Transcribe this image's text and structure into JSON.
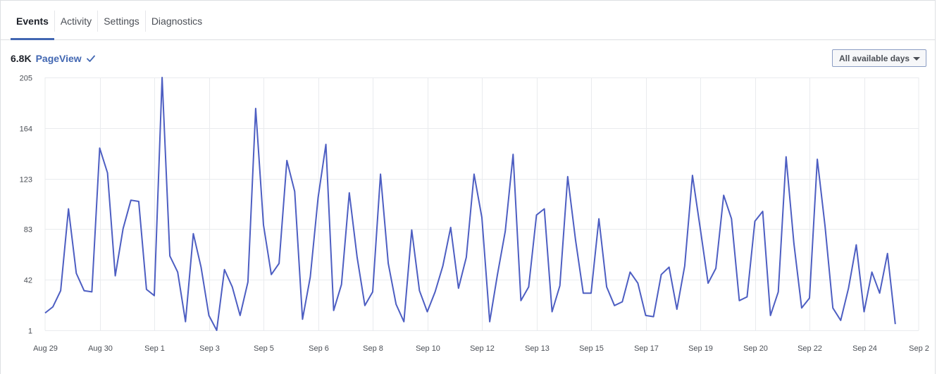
{
  "tabs": [
    {
      "label": "Events",
      "active": true
    },
    {
      "label": "Activity",
      "active": false
    },
    {
      "label": "Settings",
      "active": false
    },
    {
      "label": "Diagnostics",
      "active": false
    }
  ],
  "summary": {
    "count": "6.8K",
    "event_name": "PageView",
    "status_icon": "check-icon"
  },
  "date_range": {
    "label": "All available days",
    "icon": "caret-down-icon"
  },
  "colors": {
    "line": "#4d5ec2",
    "accent": "#4267b2",
    "grid": "#e9ebee"
  },
  "chart_data": {
    "type": "line",
    "title": "",
    "xlabel": "",
    "ylabel": "",
    "ylim": [
      1,
      205
    ],
    "y_ticks": [
      1,
      42,
      83,
      123,
      164,
      205
    ],
    "xlim": [
      0,
      112
    ],
    "x_ticks": [
      {
        "x": 0,
        "label": "Aug 29"
      },
      {
        "x": 7,
        "label": "Aug 30"
      },
      {
        "x": 14,
        "label": "Sep 1"
      },
      {
        "x": 21,
        "label": "Sep 3"
      },
      {
        "x": 28,
        "label": "Sep 5"
      },
      {
        "x": 35,
        "label": "Sep 6"
      },
      {
        "x": 42,
        "label": "Sep 8"
      },
      {
        "x": 49,
        "label": "Sep 10"
      },
      {
        "x": 56,
        "label": "Sep 12"
      },
      {
        "x": 63,
        "label": "Sep 13"
      },
      {
        "x": 70,
        "label": "Sep 15"
      },
      {
        "x": 77,
        "label": "Sep 17"
      },
      {
        "x": 84,
        "label": "Sep 19"
      },
      {
        "x": 91,
        "label": "Sep 20"
      },
      {
        "x": 98,
        "label": "Sep 22"
      },
      {
        "x": 105,
        "label": "Sep 24"
      },
      {
        "x": 112,
        "label": "Sep 2"
      }
    ],
    "grid": true,
    "series": [
      {
        "values": [
          15,
          20,
          33,
          99,
          47,
          33,
          32,
          148,
          128,
          45,
          83,
          106,
          105,
          34,
          29,
          205,
          61,
          48,
          8,
          79,
          52,
          13,
          1,
          50,
          36,
          13,
          40,
          180,
          86,
          46,
          55,
          138,
          113,
          10,
          44,
          108,
          151,
          17,
          38,
          112,
          60,
          21,
          32,
          127,
          55,
          22,
          8,
          82,
          33,
          16,
          32,
          53,
          84,
          35,
          60,
          127,
          92,
          8,
          46,
          81,
          143,
          25,
          36,
          94,
          99,
          16,
          37,
          125,
          74,
          31,
          31,
          91,
          36,
          21,
          24,
          48,
          39,
          13,
          12,
          46,
          52,
          18,
          53,
          126,
          83,
          39,
          51,
          110,
          91,
          25,
          28,
          89,
          97,
          13,
          32,
          141,
          71,
          19,
          27,
          139,
          85,
          19,
          9,
          35,
          70,
          16,
          48,
          31,
          63,
          6
        ]
      }
    ]
  }
}
